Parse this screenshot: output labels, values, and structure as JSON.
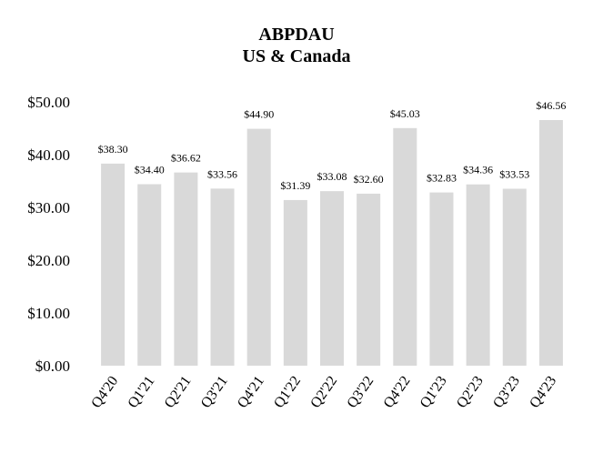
{
  "chart_data": {
    "type": "bar",
    "title": "ABPDAU",
    "subtitle": "US & Canada",
    "xlabel": "",
    "ylabel": "",
    "categories": [
      "Q4'20",
      "Q1'21",
      "Q2'21",
      "Q3'21",
      "Q4'21",
      "Q1'22",
      "Q2'22",
      "Q3'22",
      "Q4'22",
      "Q1'23",
      "Q2'23",
      "Q3'23",
      "Q4'23"
    ],
    "values": [
      38.3,
      34.4,
      36.62,
      33.56,
      44.9,
      31.39,
      33.08,
      32.6,
      45.03,
      32.83,
      34.36,
      33.53,
      46.56
    ],
    "data_labels": [
      "$38.30",
      "$34.40",
      "$36.62",
      "$33.56",
      "$44.90",
      "$31.39",
      "$33.08",
      "$32.60",
      "$45.03",
      "$32.83",
      "$34.36",
      "$33.53",
      "$46.56"
    ],
    "ylim": [
      0,
      50
    ],
    "yticks": [
      0,
      10,
      20,
      30,
      40,
      50
    ],
    "ytick_labels": [
      "$0.00",
      "$10.00",
      "$20.00",
      "$30.00",
      "$40.00",
      "$50.00"
    ],
    "grid": false,
    "legend": "none",
    "bar_color": "#d9d9d9"
  }
}
